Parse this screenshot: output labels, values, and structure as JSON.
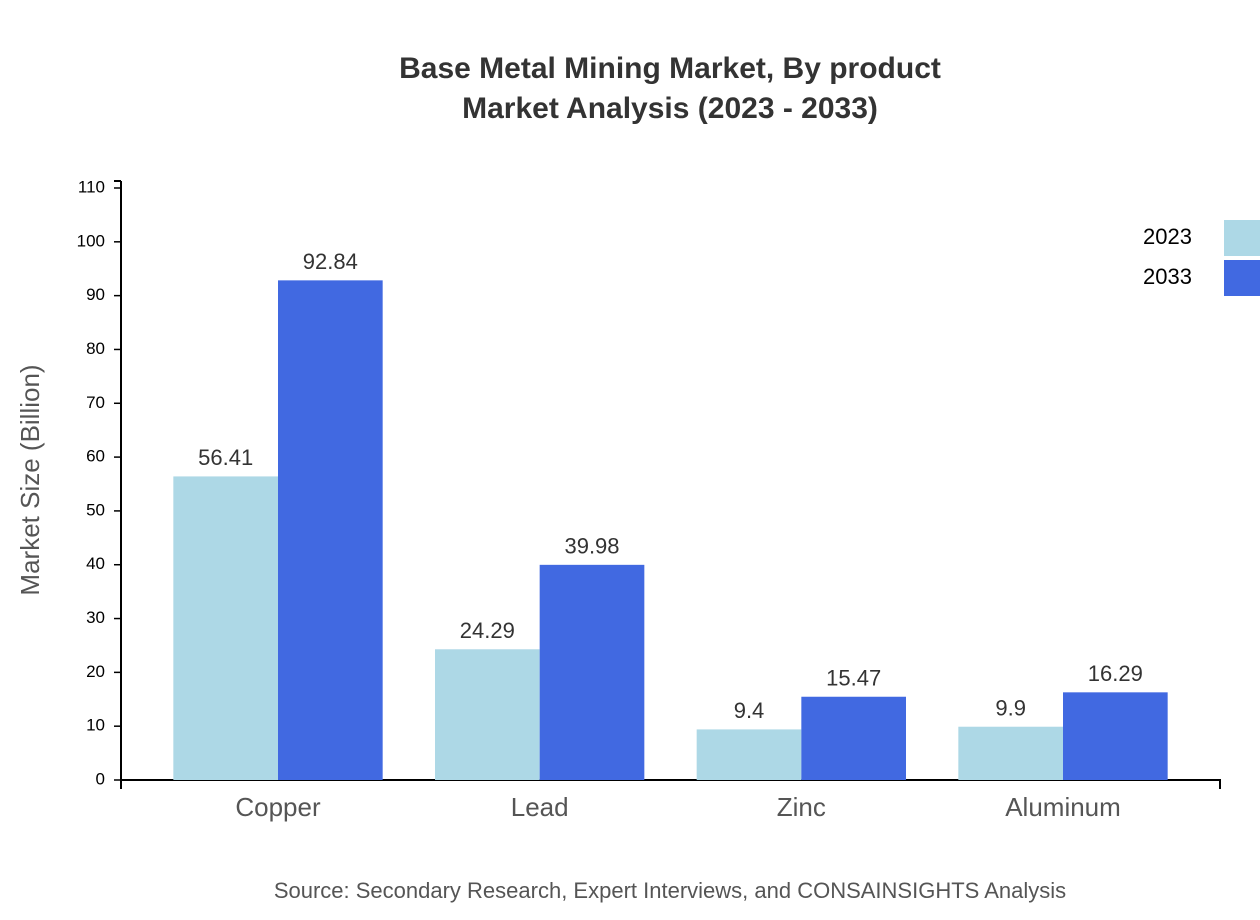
{
  "chart_data": {
    "type": "bar",
    "title": "Base Metal Mining Market, By product",
    "subtitle": "Market Analysis (2023 - 2033)",
    "y_label": "Market Size (Billion)",
    "source": "Source: Secondary Research, Expert Interviews, and CONSAINSIGHTS Analysis",
    "categories": [
      "Copper",
      "Lead",
      "Zinc",
      "Aluminum"
    ],
    "series": [
      {
        "name": "2023",
        "color": "#add8e6",
        "values": [
          56.41,
          24.29,
          9.4,
          9.9
        ]
      },
      {
        "name": "2033",
        "color": "#4169e1",
        "values": [
          92.84,
          39.98,
          15.47,
          16.29
        ]
      }
    ],
    "ylim": [
      0,
      110
    ],
    "yticks": [
      0,
      10,
      20,
      30,
      40,
      50,
      60,
      70,
      80,
      90,
      100,
      110
    ],
    "grid": false,
    "legend": "top-right"
  }
}
